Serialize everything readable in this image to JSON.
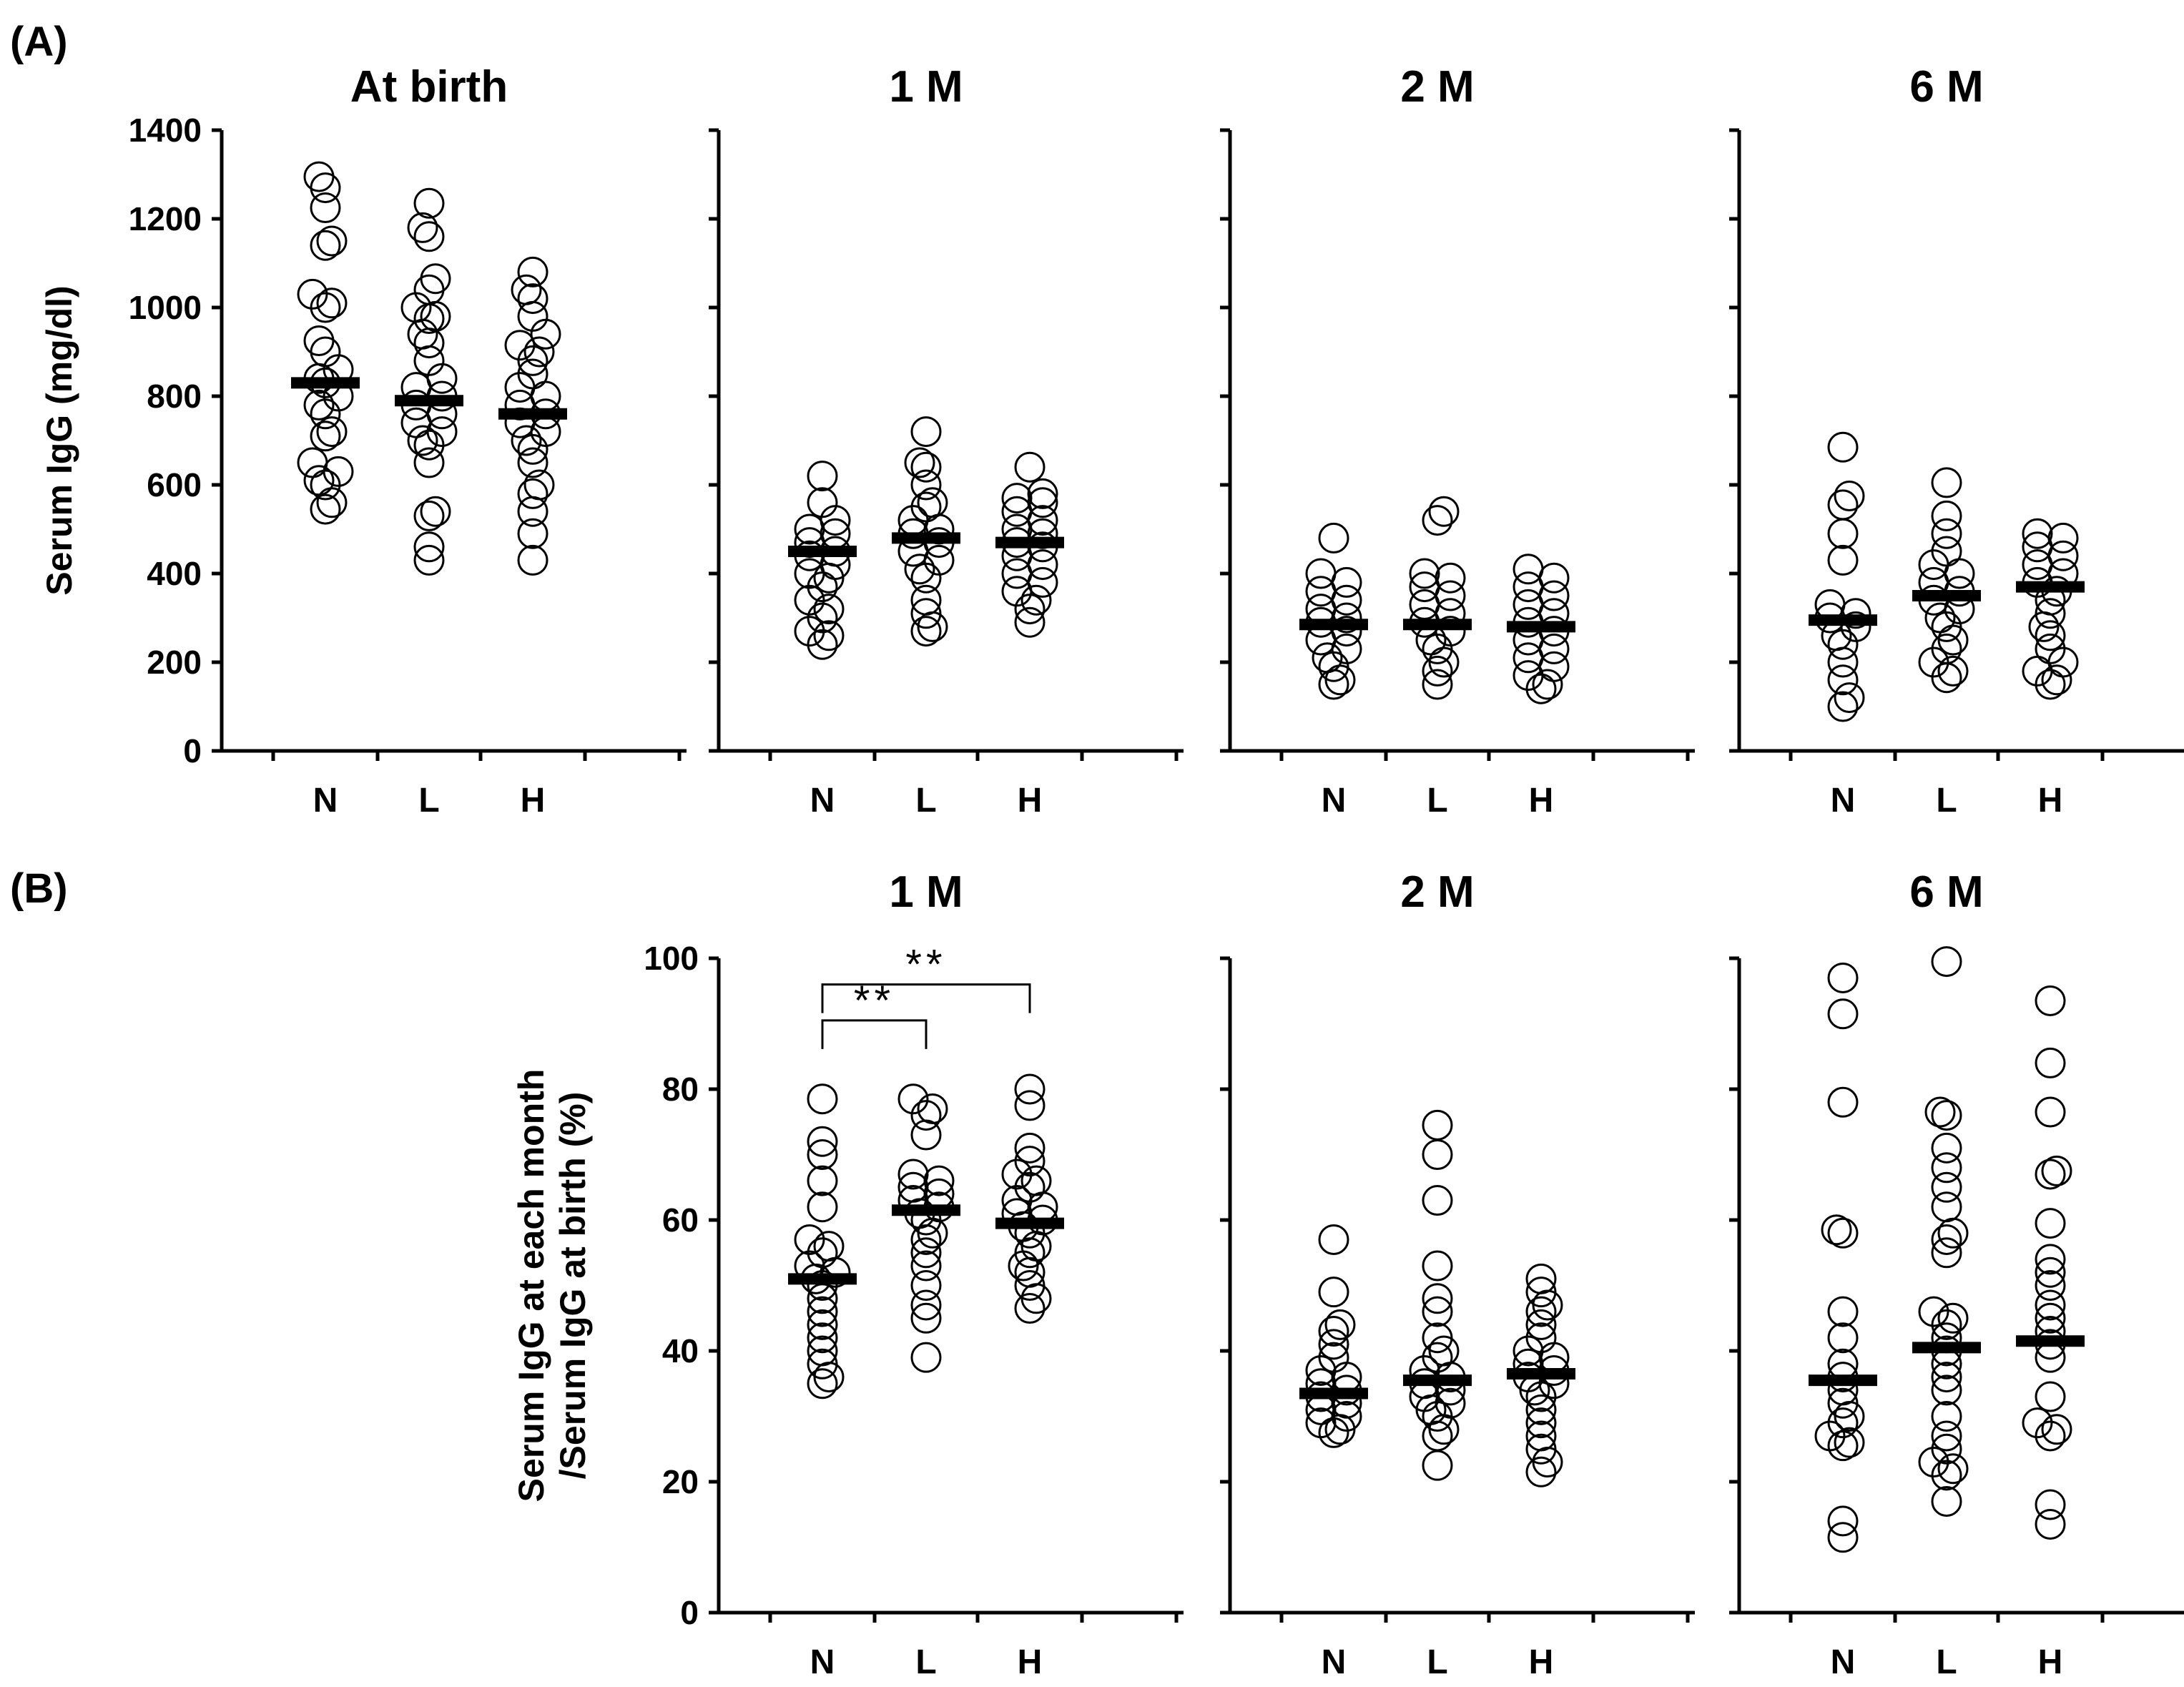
{
  "panels": {
    "a": {
      "letter": "(A)"
    },
    "b": {
      "letter": "(B)"
    }
  },
  "chart_data": [
    {
      "type": "scatter",
      "panel": "A",
      "title": "At birth",
      "ylabel": "Serum IgG (mg/dl)",
      "ylim": [
        0,
        1400
      ],
      "yticks": [
        0,
        200,
        400,
        600,
        800,
        1000,
        1200,
        1400
      ],
      "show_tick_labels": true,
      "categories": [
        "N",
        "L",
        "H"
      ],
      "series": [
        {
          "name": "N",
          "median": 830,
          "values": [
            1295,
            1270,
            1225,
            1150,
            1140,
            1030,
            1010,
            1000,
            925,
            900,
            860,
            840,
            830,
            800,
            780,
            760,
            720,
            710,
            650,
            630,
            610,
            600,
            560,
            545
          ]
        },
        {
          "name": "L",
          "median": 790,
          "values": [
            1235,
            1180,
            1160,
            1065,
            1040,
            1000,
            980,
            975,
            940,
            920,
            880,
            840,
            820,
            800,
            780,
            760,
            740,
            720,
            700,
            690,
            650,
            540,
            530,
            460,
            430
          ]
        },
        {
          "name": "H",
          "median": 760,
          "values": [
            1080,
            1040,
            1020,
            980,
            940,
            915,
            900,
            880,
            850,
            820,
            800,
            780,
            760,
            740,
            720,
            700,
            680,
            650,
            600,
            580,
            540,
            490,
            430
          ]
        }
      ]
    },
    {
      "type": "scatter",
      "panel": "A",
      "title": "1 M",
      "ylim": [
        0,
        1400
      ],
      "yticks": [
        0,
        200,
        400,
        600,
        800,
        1000,
        1200,
        1400
      ],
      "show_tick_labels": false,
      "categories": [
        "N",
        "L",
        "H"
      ],
      "series": [
        {
          "name": "N",
          "median": 450,
          "values": [
            620,
            560,
            520,
            500,
            490,
            470,
            450,
            440,
            420,
            400,
            390,
            370,
            340,
            320,
            300,
            270,
            260,
            240
          ]
        },
        {
          "name": "L",
          "median": 480,
          "values": [
            720,
            650,
            640,
            600,
            560,
            550,
            520,
            500,
            490,
            470,
            450,
            430,
            410,
            390,
            340,
            310,
            280,
            270
          ]
        },
        {
          "name": "H",
          "median": 470,
          "values": [
            640,
            580,
            570,
            560,
            540,
            520,
            500,
            490,
            470,
            460,
            440,
            420,
            400,
            380,
            360,
            340,
            320,
            290
          ]
        }
      ]
    },
    {
      "type": "scatter",
      "panel": "A",
      "title": "2 M",
      "ylim": [
        0,
        1400
      ],
      "yticks": [
        0,
        200,
        400,
        600,
        800,
        1000,
        1200,
        1400
      ],
      "show_tick_labels": false,
      "categories": [
        "N",
        "L",
        "H"
      ],
      "series": [
        {
          "name": "N",
          "median": 285,
          "values": [
            480,
            400,
            380,
            360,
            340,
            320,
            300,
            290,
            270,
            250,
            230,
            210,
            190,
            160,
            150
          ]
        },
        {
          "name": "L",
          "median": 285,
          "values": [
            540,
            520,
            400,
            390,
            370,
            350,
            330,
            310,
            290,
            270,
            250,
            230,
            200,
            180,
            150
          ]
        },
        {
          "name": "H",
          "median": 280,
          "values": [
            410,
            390,
            370,
            350,
            330,
            310,
            290,
            270,
            250,
            230,
            210,
            190,
            170,
            150,
            140
          ]
        }
      ]
    },
    {
      "type": "scatter",
      "panel": "A",
      "title": "6 M",
      "ylim": [
        0,
        1400
      ],
      "yticks": [
        0,
        200,
        400,
        600,
        800,
        1000,
        1200,
        1400
      ],
      "show_tick_labels": false,
      "categories": [
        "N",
        "L",
        "H"
      ],
      "series": [
        {
          "name": "N",
          "median": 295,
          "values": [
            685,
            575,
            555,
            490,
            430,
            330,
            310,
            300,
            280,
            260,
            240,
            200,
            160,
            120,
            100
          ]
        },
        {
          "name": "L",
          "median": 350,
          "values": [
            605,
            530,
            490,
            450,
            420,
            400,
            380,
            360,
            340,
            320,
            300,
            280,
            250,
            230,
            200,
            180,
            165
          ]
        },
        {
          "name": "H",
          "median": 370,
          "values": [
            490,
            480,
            460,
            440,
            420,
            400,
            380,
            360,
            340,
            310,
            280,
            260,
            230,
            200,
            180,
            160,
            150
          ]
        }
      ]
    },
    {
      "type": "scatter",
      "panel": "B",
      "title": "1 M",
      "ylabel_lines": [
        "Serum IgG at each month",
        "/Serum IgG at birth (%)"
      ],
      "ylim": [
        0,
        100
      ],
      "yticks": [
        0,
        20,
        40,
        60,
        80,
        100
      ],
      "show_tick_labels": true,
      "categories": [
        "N",
        "L",
        "H"
      ],
      "series": [
        {
          "name": "N",
          "median": 51,
          "values": [
            78.5,
            72,
            70,
            66,
            62,
            57,
            56,
            55,
            53,
            52,
            51,
            50,
            48,
            46,
            44,
            42,
            40,
            38,
            36,
            35
          ]
        },
        {
          "name": "L",
          "median": 61.5,
          "values": [
            78.5,
            77,
            76,
            73,
            67,
            66,
            65,
            64,
            63,
            62,
            61,
            60,
            58,
            57,
            55,
            53,
            50,
            47,
            45,
            39
          ]
        },
        {
          "name": "H",
          "median": 59.5,
          "values": [
            80,
            77.5,
            71,
            69,
            67,
            66,
            65,
            63,
            62,
            61,
            60,
            59,
            58,
            56,
            55,
            53,
            52,
            50,
            48,
            46.5
          ]
        }
      ],
      "annotations": [
        {
          "label": "**",
          "from": "N",
          "to": "L",
          "y": 90.5
        },
        {
          "label": "**",
          "from": "N",
          "to": "H",
          "y": 96
        }
      ]
    },
    {
      "type": "scatter",
      "panel": "B",
      "title": "2 M",
      "ylim": [
        0,
        100
      ],
      "yticks": [
        0,
        20,
        40,
        60,
        80,
        100
      ],
      "show_tick_labels": false,
      "categories": [
        "N",
        "L",
        "H"
      ],
      "series": [
        {
          "name": "N",
          "median": 33.5,
          "values": [
            57,
            49,
            44,
            43,
            41,
            39,
            37,
            36,
            35,
            34,
            33,
            32,
            31,
            30,
            29,
            28,
            27.5
          ]
        },
        {
          "name": "L",
          "median": 35.5,
          "values": [
            74.5,
            70,
            63,
            53,
            48,
            46,
            42,
            40,
            39,
            37,
            36,
            35,
            34,
            33,
            32,
            31,
            30,
            28,
            27,
            22.5
          ]
        },
        {
          "name": "H",
          "median": 36.5,
          "values": [
            51,
            49,
            47,
            46,
            44,
            42,
            40,
            39,
            38,
            37,
            36,
            35,
            34,
            33,
            31,
            29,
            27,
            25,
            23,
            21.5
          ]
        }
      ]
    },
    {
      "type": "scatter",
      "panel": "B",
      "title": "6 M",
      "ylim": [
        0,
        100
      ],
      "yticks": [
        0,
        20,
        40,
        60,
        80,
        100
      ],
      "show_tick_labels": false,
      "categories": [
        "N",
        "L",
        "H"
      ],
      "series": [
        {
          "name": "N",
          "median": 35.5,
          "values": [
            97,
            91.5,
            78,
            58.5,
            58,
            46,
            42,
            38,
            36,
            34,
            32,
            30,
            29,
            27,
            26,
            25.5,
            14,
            11.5
          ]
        },
        {
          "name": "L",
          "median": 40.5,
          "values": [
            99.5,
            76.5,
            76,
            71,
            68,
            65,
            62,
            58,
            57,
            55,
            46,
            45,
            44,
            42,
            40,
            38,
            36,
            34,
            30,
            27,
            25,
            23,
            22,
            21,
            17
          ]
        },
        {
          "name": "H",
          "median": 41.5,
          "values": [
            93.5,
            84,
            76.5,
            67.5,
            67,
            59.5,
            54,
            52,
            50,
            47,
            45,
            43,
            41,
            39,
            33,
            29,
            28,
            27,
            16.5,
            13.5
          ]
        }
      ]
    }
  ]
}
